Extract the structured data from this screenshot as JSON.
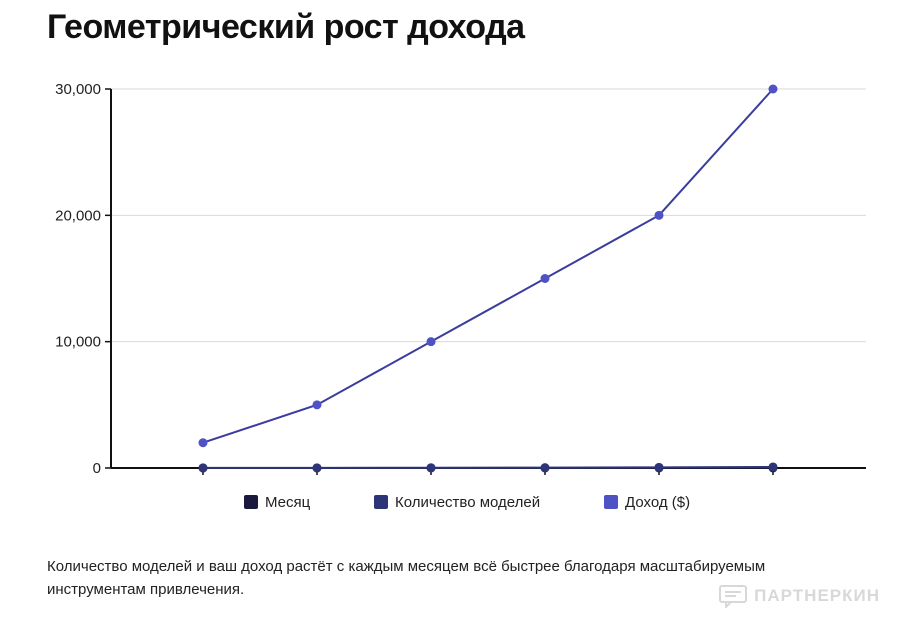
{
  "title": "Геометрический рост дохода",
  "caption": "Количество моделей и ваш доход растёт с каждым месяцем всё быстрее благодаря масштабируемым инструментам привлечения.",
  "watermark": "ПАРТНЕРКИН",
  "chart_data": {
    "type": "line",
    "x": [
      1,
      2,
      3,
      4,
      5,
      6
    ],
    "xticks_visible": false,
    "ylim": [
      0,
      30000
    ],
    "yticks": [
      0,
      10000,
      20000,
      30000
    ],
    "ytick_labels": [
      "0",
      "10,000",
      "20,000",
      "30,000"
    ],
    "grid": "horizontal",
    "legend_position": "bottom",
    "series": [
      {
        "name": "Месяц",
        "color": "#1a1a3d",
        "values": [
          1,
          2,
          3,
          4,
          5,
          6
        ]
      },
      {
        "name": "Количество моделей",
        "color": "#2e3478",
        "values": [
          5,
          10,
          20,
          30,
          50,
          80
        ]
      },
      {
        "name": "Доход ($)",
        "color": "#4f52c4",
        "line_color": "#3a3d9e",
        "values": [
          2000,
          5000,
          10000,
          15000,
          20000,
          30000
        ]
      }
    ]
  }
}
